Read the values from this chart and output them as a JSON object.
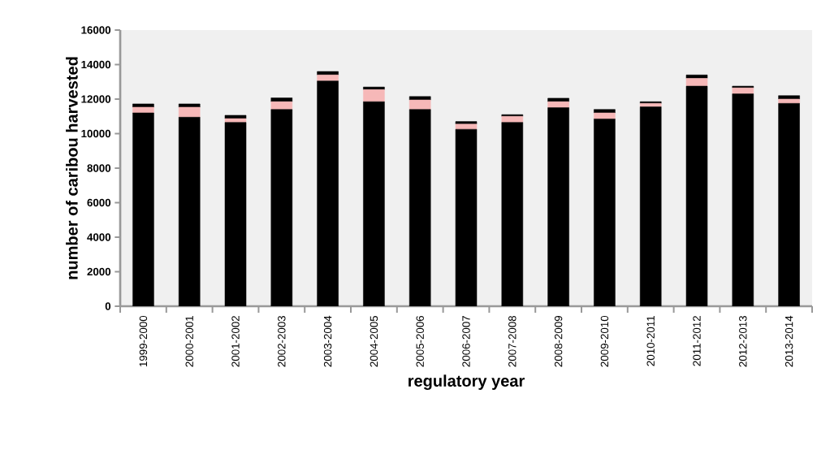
{
  "chart_data": {
    "type": "bar",
    "stacked": true,
    "xlabel": "regulatory year",
    "ylabel": "number of caribou harvested",
    "categories": [
      "1999-2000",
      "2000-2001",
      "2001-2002",
      "2002-2003",
      "2003-2004",
      "2004-2005",
      "2005-2006",
      "2006-2007",
      "2007-2008",
      "2008-2009",
      "2009-2010",
      "2010-2011",
      "2011-2012",
      "2012-2013",
      "2013-2014"
    ],
    "series": [
      {
        "color": "#000000",
        "values": [
          11200,
          10950,
          10650,
          11400,
          13050,
          11850,
          11400,
          10250,
          10650,
          11500,
          10850,
          11550,
          12750,
          12300,
          11750
        ]
      },
      {
        "color": "#f6b8b8",
        "values": [
          330,
          580,
          220,
          450,
          350,
          700,
          550,
          300,
          350,
          350,
          350,
          200,
          450,
          350,
          250
        ]
      },
      {
        "color": "#000000",
        "values": [
          190,
          190,
          190,
          220,
          200,
          150,
          200,
          150,
          100,
          200,
          200,
          100,
          200,
          100,
          200
        ]
      }
    ],
    "ylim": [
      0,
      16000
    ],
    "yticks": [
      0,
      2000,
      4000,
      6000,
      8000,
      10000,
      12000,
      14000,
      16000
    ]
  }
}
